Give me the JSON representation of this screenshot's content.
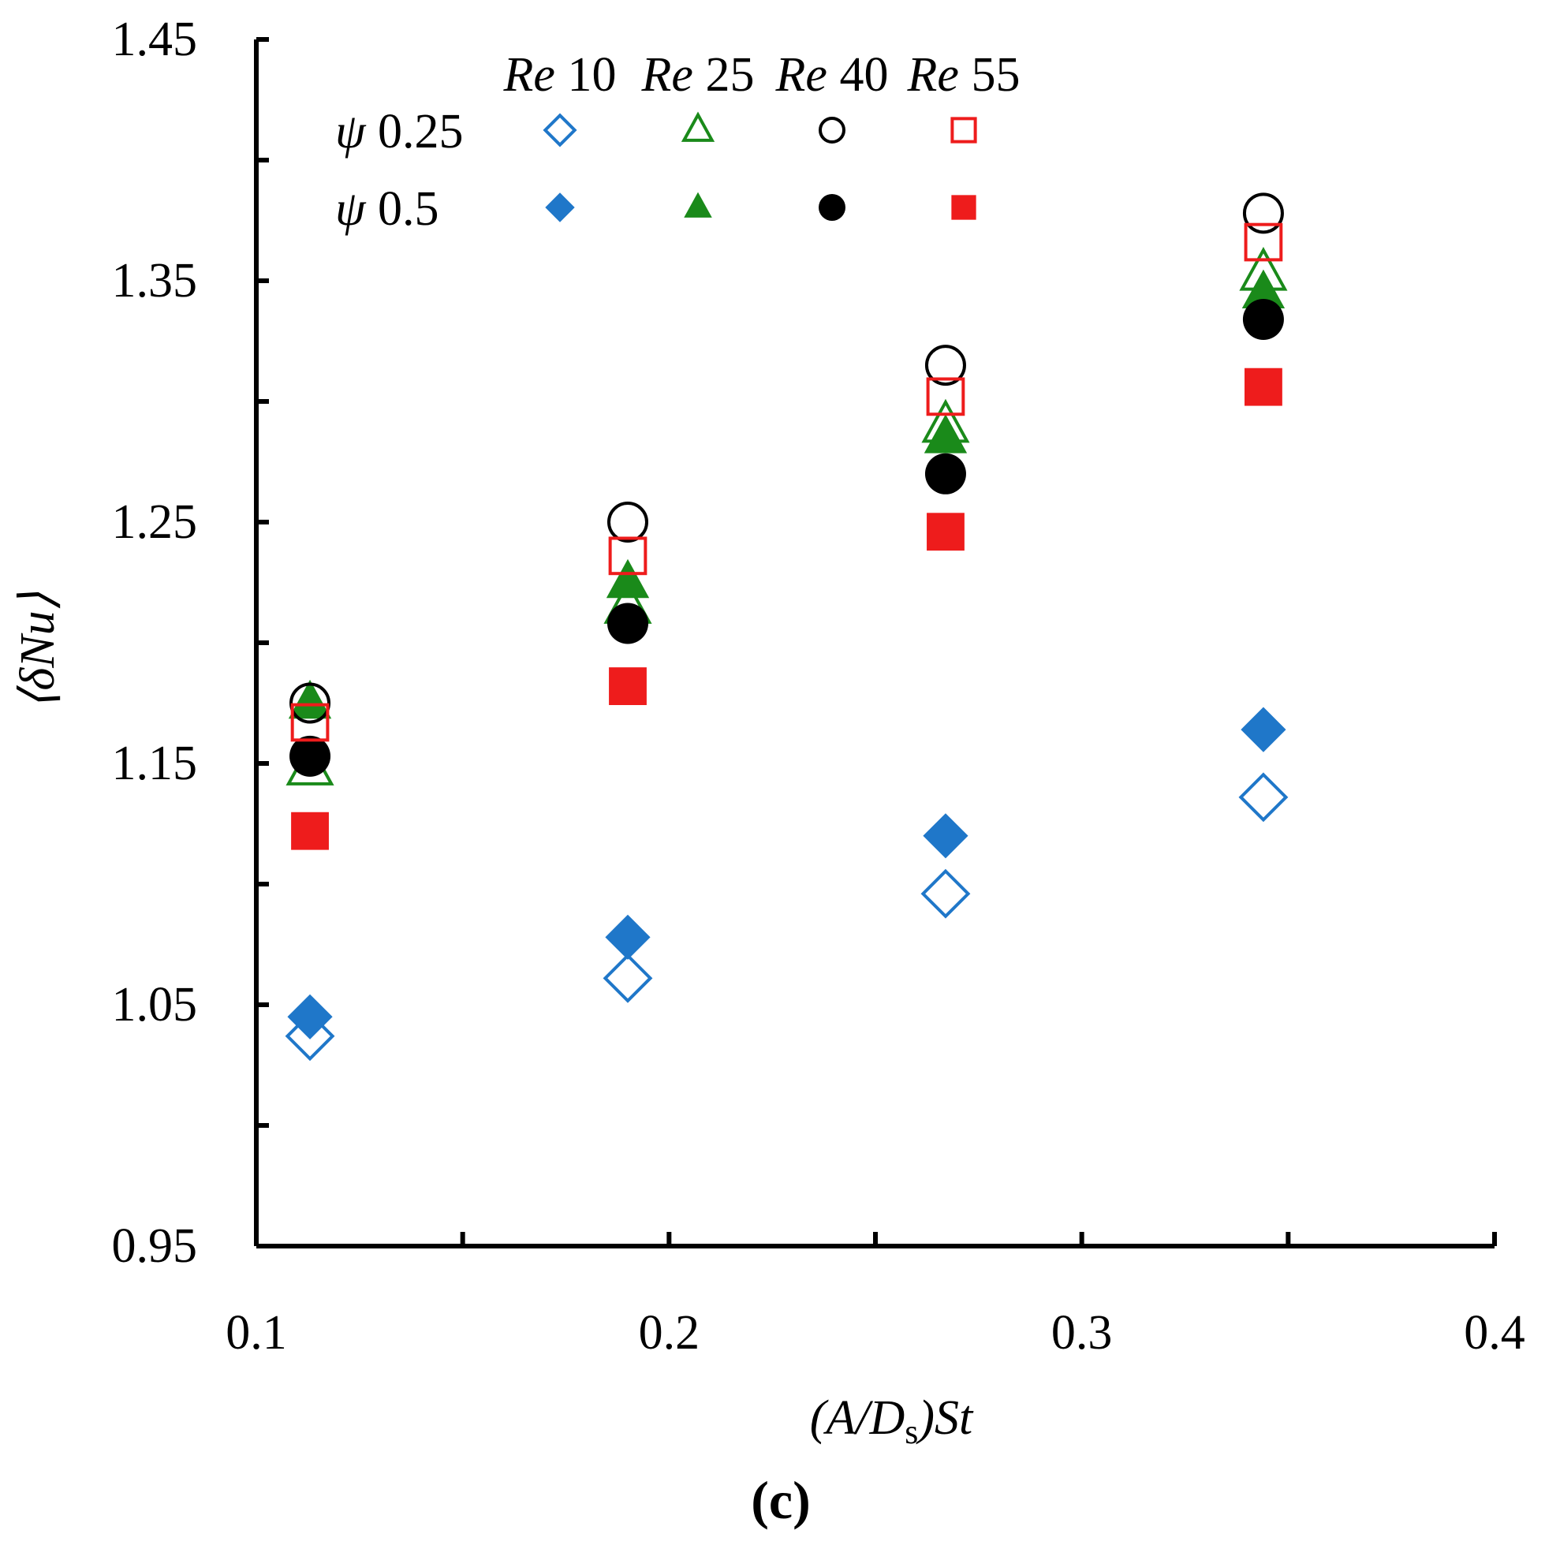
{
  "chart_data": {
    "type": "scatter",
    "caption": "(c)",
    "xlabel": "(A/Ds)St",
    "ylabel": "⟨δNu⟩",
    "xlim": [
      0.1,
      0.4
    ],
    "ylim": [
      0.95,
      1.45
    ],
    "x_tick_labels": [
      "0.1",
      "0.2",
      "0.3",
      "0.4"
    ],
    "y_tick_labels": [
      "0.95",
      "1.05",
      "1.15",
      "1.25",
      "1.35",
      "1.45"
    ],
    "x_minor_ticks": [
      0.15,
      0.25,
      0.35
    ],
    "y_minor_ticks": [
      1.0,
      1.1,
      1.2,
      1.3,
      1.4
    ],
    "legend": {
      "columns": [
        {
          "prefix": "Re",
          "value": "10"
        },
        {
          "prefix": "Re",
          "value": "25"
        },
        {
          "prefix": "Re",
          "value": "40"
        },
        {
          "prefix": "Re",
          "value": "55"
        }
      ],
      "rows": [
        {
          "symbol": "ψ",
          "value": "0.25"
        },
        {
          "symbol": "ψ",
          "value": "0.5"
        }
      ]
    },
    "series": [
      {
        "name": "Re 10, ψ 0.25",
        "re": 10,
        "psi": 0.25,
        "marker": "diamond",
        "filled": false,
        "color": "#1f77c9",
        "x": [
          0.113,
          0.19,
          0.267,
          0.344
        ],
        "y": [
          1.037,
          1.061,
          1.096,
          1.136
        ]
      },
      {
        "name": "Re 10, ψ 0.5",
        "re": 10,
        "psi": 0.5,
        "marker": "diamond",
        "filled": true,
        "color": "#1f77c9",
        "x": [
          0.113,
          0.19,
          0.267,
          0.344
        ],
        "y": [
          1.045,
          1.078,
          1.12,
          1.164
        ]
      },
      {
        "name": "Re 25, ψ 0.25",
        "re": 25,
        "psi": 0.25,
        "marker": "triangle",
        "filled": false,
        "color": "#1a8a1a",
        "x": [
          0.113,
          0.19,
          0.267,
          0.344
        ],
        "y": [
          1.148,
          1.215,
          1.29,
          1.353
        ]
      },
      {
        "name": "Re 25, ψ 0.5",
        "re": 25,
        "psi": 0.5,
        "marker": "triangle",
        "filled": true,
        "color": "#1a8a1a",
        "x": [
          0.113,
          0.19,
          0.267,
          0.344
        ],
        "y": [
          1.175,
          1.225,
          1.285,
          1.345
        ]
      },
      {
        "name": "Re 40, ψ 0.25",
        "re": 40,
        "psi": 0.25,
        "marker": "circle",
        "filled": false,
        "color": "#000000",
        "x": [
          0.113,
          0.19,
          0.267,
          0.344
        ],
        "y": [
          1.175,
          1.25,
          1.315,
          1.378
        ]
      },
      {
        "name": "Re 40, ψ 0.5",
        "re": 40,
        "psi": 0.5,
        "marker": "circle",
        "filled": true,
        "color": "#000000",
        "x": [
          0.113,
          0.19,
          0.267,
          0.344
        ],
        "y": [
          1.153,
          1.208,
          1.27,
          1.334
        ]
      },
      {
        "name": "Re 55, ψ 0.25",
        "re": 55,
        "psi": 0.25,
        "marker": "square",
        "filled": false,
        "color": "#ee1c1c",
        "x": [
          0.113,
          0.19,
          0.267,
          0.344
        ],
        "y": [
          1.167,
          1.236,
          1.302,
          1.366
        ]
      },
      {
        "name": "Re 55, ψ 0.5",
        "re": 55,
        "psi": 0.5,
        "marker": "square",
        "filled": true,
        "color": "#ee1c1c",
        "x": [
          0.113,
          0.19,
          0.267,
          0.344
        ],
        "y": [
          1.122,
          1.182,
          1.246,
          1.306
        ]
      }
    ]
  }
}
